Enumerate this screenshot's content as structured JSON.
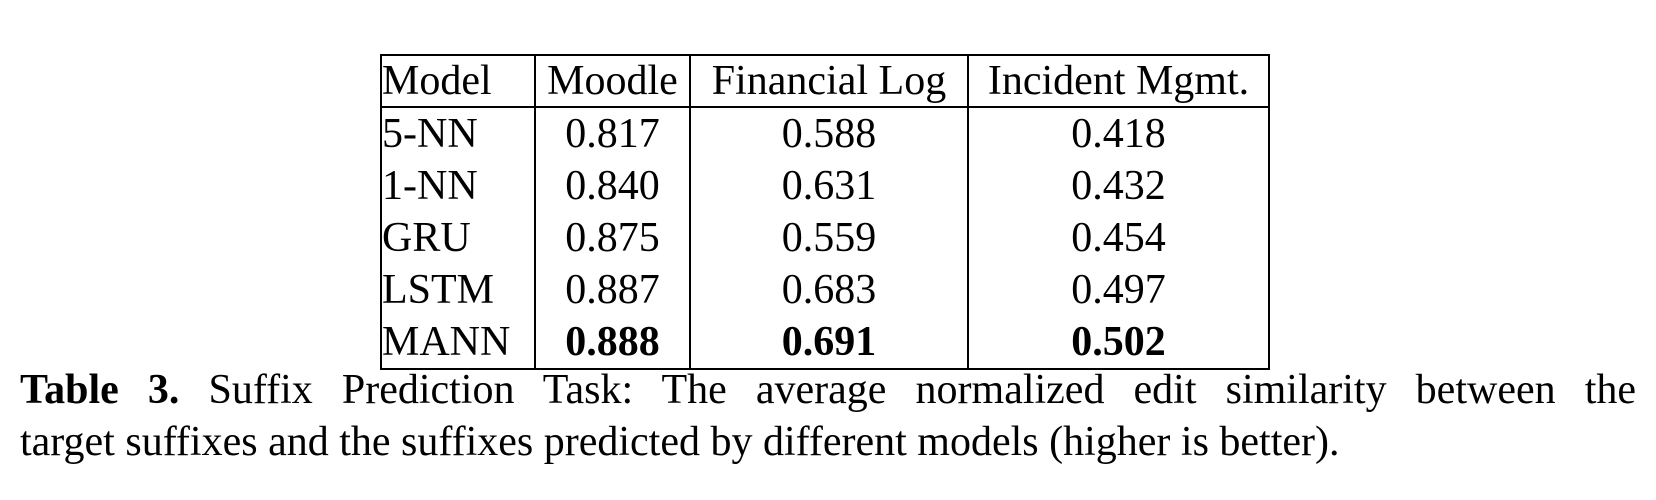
{
  "table": {
    "headers": [
      "Model",
      "Moodle",
      "Financial Log",
      "Incident Mgmt."
    ],
    "rows": [
      {
        "model": "5-NN",
        "values": [
          "0.817",
          "0.588",
          "0.418"
        ],
        "best": false
      },
      {
        "model": "1-NN",
        "values": [
          "0.840",
          "0.631",
          "0.432"
        ],
        "best": false
      },
      {
        "model": "GRU",
        "values": [
          "0.875",
          "0.559",
          "0.454"
        ],
        "best": false
      },
      {
        "model": "LSTM",
        "values": [
          "0.887",
          "0.683",
          "0.497"
        ],
        "best": false
      },
      {
        "model": "MANN",
        "values": [
          "0.888",
          "0.691",
          "0.502"
        ],
        "best": true
      }
    ]
  },
  "caption": {
    "label": "Table 3.",
    "line1": "Suffix Prediction Task: The average normalized edit similarity between the",
    "line2": "target suffixes and the suffixes predicted by different models (higher is better)."
  },
  "colors": {
    "text": "#000000",
    "background": "#ffffff",
    "border": "#000000"
  }
}
